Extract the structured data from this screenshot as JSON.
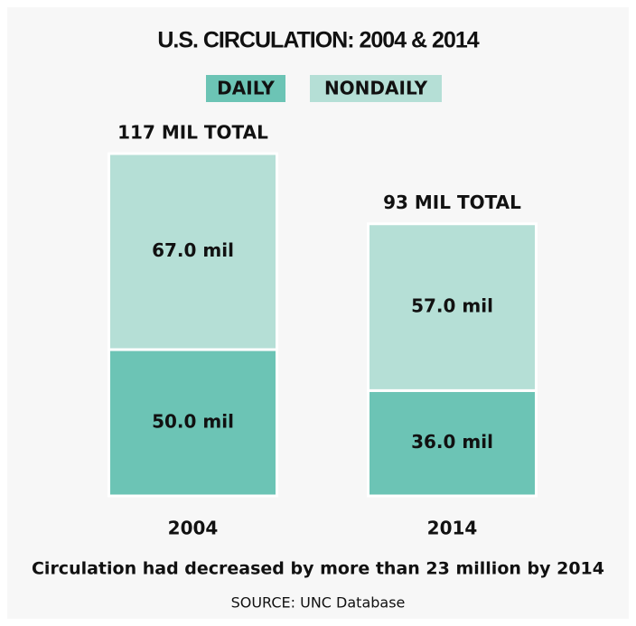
{
  "chart_data": {
    "type": "stacked-bar",
    "title": "U.S. CIRCULATION: 2004 & 2014",
    "categories": [
      "2004",
      "2014"
    ],
    "series": [
      {
        "name": "DAILY",
        "color": "#6cc4b5",
        "values": [
          50,
          36
        ],
        "value_labels": [
          "50.0 mil",
          "36.0 mil"
        ]
      },
      {
        "name": "NONDAILY",
        "color": "#b5dfd6",
        "values": [
          67,
          57
        ],
        "value_labels": [
          "67.0 mil",
          "57.0 mil"
        ]
      }
    ],
    "total_labels": [
      "117 MIL TOTAL",
      "93 MIL TOTAL"
    ],
    "caption": "Circulation had decreased by more than 23 million by 2014",
    "source": "SOURCE: UNC Database"
  }
}
